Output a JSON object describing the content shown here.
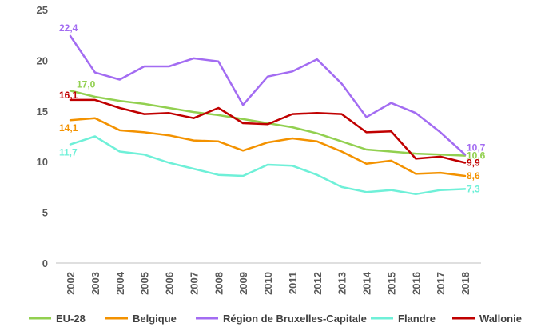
{
  "chart_data": {
    "type": "line",
    "x": [
      "2002",
      "2003",
      "2004",
      "2005",
      "2006",
      "2007",
      "2008",
      "2009",
      "2010",
      "2011",
      "2012",
      "2013",
      "2014",
      "2015",
      "2016",
      "2017",
      "2018"
    ],
    "ylim": [
      0,
      25
    ],
    "yticks": [
      "0",
      "5",
      "10",
      "15",
      "20",
      "25"
    ],
    "grid": false,
    "legend_position": "bottom",
    "series": [
      {
        "name": "EU-28",
        "color": "#92d050",
        "values": [
          17.0,
          16.4,
          16.0,
          15.7,
          15.3,
          14.9,
          14.6,
          14.2,
          13.8,
          13.4,
          12.8,
          12.0,
          11.2,
          11.0,
          10.8,
          10.7,
          10.6
        ],
        "labels": [
          {
            "index": 0,
            "text": "17,0"
          },
          {
            "index": 16,
            "text": "10,6"
          }
        ]
      },
      {
        "name": "Belgique",
        "color": "#f39200",
        "values": [
          14.1,
          14.3,
          13.1,
          12.9,
          12.6,
          12.1,
          12.0,
          11.1,
          11.9,
          12.3,
          12.0,
          11.0,
          9.8,
          10.1,
          8.8,
          8.9,
          8.6
        ],
        "labels": [
          {
            "index": 0,
            "text": "14,1"
          },
          {
            "index": 16,
            "text": "8,6"
          }
        ]
      },
      {
        "name": "Région de Bruxelles-Capitale",
        "color": "#a36cf2",
        "values": [
          22.4,
          18.8,
          18.1,
          19.4,
          19.4,
          20.2,
          19.9,
          15.6,
          18.4,
          18.9,
          20.1,
          17.7,
          14.4,
          15.8,
          14.8,
          12.9,
          10.7
        ],
        "labels": [
          {
            "index": 0,
            "text": "22,4"
          },
          {
            "index": 16,
            "text": "10,7"
          }
        ]
      },
      {
        "name": "Flandre",
        "color": "#6ff0d8",
        "values": [
          11.7,
          12.5,
          11.0,
          10.7,
          9.9,
          9.3,
          8.7,
          8.6,
          9.7,
          9.6,
          8.7,
          7.5,
          7.0,
          7.2,
          6.8,
          7.2,
          7.3
        ],
        "labels": [
          {
            "index": 0,
            "text": "11,7"
          },
          {
            "index": 16,
            "text": "7,3"
          }
        ]
      },
      {
        "name": "Wallonie",
        "color": "#c00000",
        "values": [
          16.1,
          16.1,
          15.3,
          14.7,
          14.8,
          14.3,
          15.3,
          13.8,
          13.7,
          14.7,
          14.8,
          14.7,
          12.9,
          13.0,
          10.3,
          10.5,
          9.9
        ],
        "labels": [
          {
            "index": 0,
            "text": "16,1"
          },
          {
            "index": 16,
            "text": "9,9"
          }
        ]
      }
    ]
  }
}
